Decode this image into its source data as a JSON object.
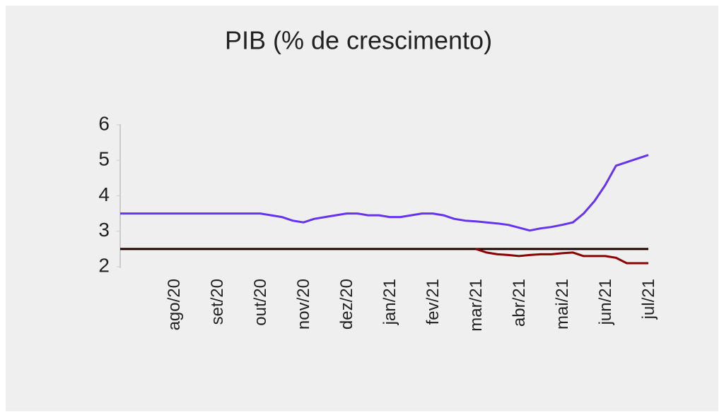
{
  "chart_data": {
    "type": "line",
    "title": "PIB (% de crescimento)",
    "categories": [
      null,
      null,
      null,
      null,
      null,
      "ago/20",
      null,
      null,
      null,
      "set/20",
      null,
      null,
      null,
      "out/20",
      null,
      null,
      null,
      "nov/20",
      null,
      null,
      null,
      "dez/20",
      null,
      null,
      null,
      "jan/21",
      null,
      null,
      null,
      "fev/21",
      null,
      null,
      null,
      "mar/21",
      null,
      null,
      null,
      "abr/21",
      null,
      null,
      null,
      "mai/21",
      null,
      null,
      null,
      "jun/21",
      null,
      null,
      null,
      "jul/21"
    ],
    "series": [
      {
        "color": "#6633ee",
        "values": [
          3.5,
          3.5,
          3.5,
          3.5,
          3.5,
          3.5,
          3.5,
          3.5,
          3.5,
          3.5,
          3.5,
          3.5,
          3.5,
          3.5,
          3.45,
          3.4,
          3.3,
          3.25,
          3.35,
          3.4,
          3.45,
          3.5,
          3.5,
          3.45,
          3.45,
          3.4,
          3.4,
          3.45,
          3.5,
          3.5,
          3.45,
          3.35,
          3.3,
          3.28,
          3.25,
          3.22,
          3.18,
          3.1,
          3.02,
          3.08,
          3.12,
          3.18,
          3.25,
          3.5,
          3.85,
          4.3,
          4.85,
          4.95,
          5.05,
          5.15
        ]
      },
      {
        "color": "#1a0000",
        "values": [
          2.5,
          2.5,
          2.5,
          2.5,
          2.5,
          2.5,
          2.5,
          2.5,
          2.5,
          2.5,
          2.5,
          2.5,
          2.5,
          2.5,
          2.5,
          2.5,
          2.5,
          2.5,
          2.5,
          2.5,
          2.5,
          2.5,
          2.5,
          2.5,
          2.5,
          2.5,
          2.5,
          2.5,
          2.5,
          2.5,
          2.5,
          2.5,
          2.5,
          2.5,
          2.5,
          2.5,
          2.5,
          2.5,
          2.5,
          2.5,
          2.5,
          2.5,
          2.5,
          2.5,
          2.5,
          2.5,
          2.5,
          2.5,
          2.5,
          2.5
        ]
      },
      {
        "color": "#8b0000",
        "values": [
          null,
          null,
          null,
          null,
          null,
          null,
          null,
          null,
          null,
          null,
          null,
          null,
          null,
          null,
          null,
          null,
          null,
          null,
          null,
          null,
          null,
          null,
          null,
          null,
          null,
          null,
          null,
          null,
          null,
          null,
          null,
          null,
          null,
          2.5,
          2.4,
          2.35,
          2.33,
          2.3,
          2.33,
          2.35,
          2.35,
          2.38,
          2.4,
          2.3,
          2.3,
          2.3,
          2.25,
          2.1,
          2.1,
          2.1
        ]
      }
    ],
    "ylim": [
      2,
      6
    ],
    "yticks": [
      2,
      3,
      4,
      5,
      6
    ]
  }
}
